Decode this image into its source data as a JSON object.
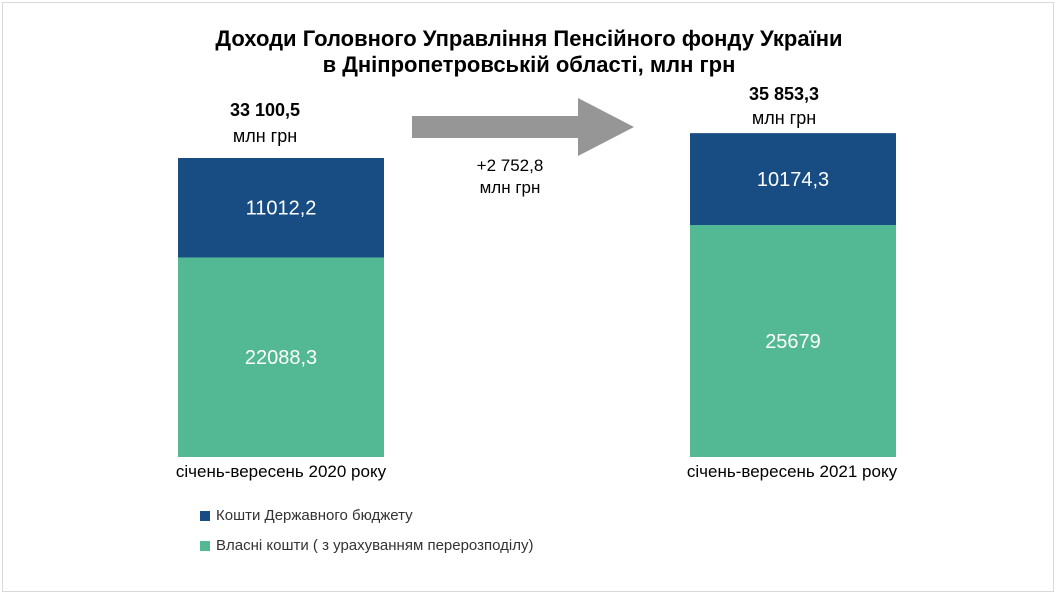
{
  "chart_data": {
    "type": "bar",
    "stacked": true,
    "title": "Доходи Головного Управління Пенсійного фонду України",
    "subtitle": "в Дніпропетровській області, млн грн",
    "categories": [
      "січень-вересень 2020 року",
      "січень-вересень 2021 року"
    ],
    "series": [
      {
        "name": "Власні кошти ( з урахуванням перерозподілу)",
        "values": [
          22088.3,
          25679
        ],
        "labels": [
          "22088,3",
          "25679"
        ],
        "color": "#52b994"
      },
      {
        "name": "Кошти Державного бюджету",
        "values": [
          11012.2,
          10174.3
        ],
        "labels": [
          "11012,2",
          "10174,3"
        ],
        "color": "#184d84"
      }
    ],
    "totals": [
      {
        "value": "33 100,5",
        "unit": "млн грн"
      },
      {
        "value": "35 853,3",
        "unit": "млн грн"
      }
    ],
    "change": {
      "value": "+2 752,8",
      "unit": "млн грн"
    },
    "legend_order": [
      1,
      0
    ],
    "legend_position": "bottom-left",
    "grid": false
  },
  "colors": {
    "arrow": "#969696",
    "bar_label": "#ffffff"
  }
}
